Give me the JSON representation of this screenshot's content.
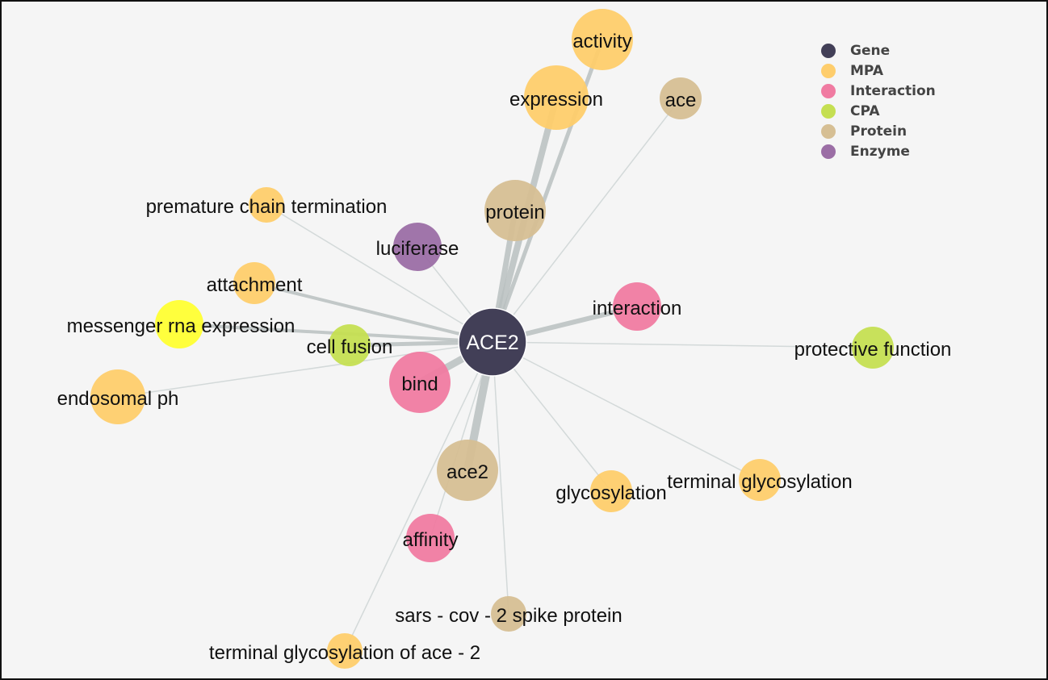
{
  "legend": [
    {
      "label": "Gene",
      "color": "#423f57"
    },
    {
      "label": "MPA",
      "color": "#fecd6c"
    },
    {
      "label": "Interaction",
      "color": "#f07ba1"
    },
    {
      "label": "CPA",
      "color": "#c5df52"
    },
    {
      "label": "Protein",
      "color": "#d6bf94"
    },
    {
      "label": "Enzyme",
      "color": "#9b6ea5"
    }
  ],
  "center": {
    "label": "ACE2",
    "category": "Gene"
  },
  "nodes": [
    {
      "label": "activity",
      "category": "MPA",
      "link_weight": 5
    },
    {
      "label": "expression",
      "category": "MPA",
      "link_weight": 8
    },
    {
      "label": "ace",
      "category": "Protein",
      "link_weight": 1.5
    },
    {
      "label": "protein",
      "category": "Protein",
      "link_weight": 7
    },
    {
      "label": "premature chain termination",
      "category": "MPA",
      "link_weight": 1.5
    },
    {
      "label": "luciferase",
      "category": "Enzyme",
      "link_weight": 1.5
    },
    {
      "label": "attachment",
      "category": "MPA",
      "link_weight": 4
    },
    {
      "label": "interaction",
      "category": "Interaction",
      "link_weight": 6
    },
    {
      "label": "messenger rna expression",
      "category": "",
      "color": "#ffff33",
      "link_weight": 4
    },
    {
      "label": "cell fusion",
      "category": "CPA",
      "link_weight": 5
    },
    {
      "label": "protective function",
      "category": "CPA",
      "link_weight": 1.5
    },
    {
      "label": "bind",
      "category": "Interaction",
      "link_weight": 9
    },
    {
      "label": "endosomal ph",
      "category": "MPA",
      "link_weight": 1.5
    },
    {
      "label": "ace2",
      "category": "Protein",
      "link_weight": 10
    },
    {
      "label": "glycosylation",
      "category": "MPA",
      "link_weight": 1.5
    },
    {
      "label": "terminal glycosylation",
      "category": "MPA",
      "link_weight": 1.5
    },
    {
      "label": "affinity",
      "category": "Interaction",
      "link_weight": 1.5
    },
    {
      "label": "sars - cov - 2 spike protein",
      "category": "Protein",
      "link_weight": 1.5
    },
    {
      "label": "terminal glycosylation of ace - 2",
      "category": "MPA",
      "link_weight": 1.5
    }
  ]
}
